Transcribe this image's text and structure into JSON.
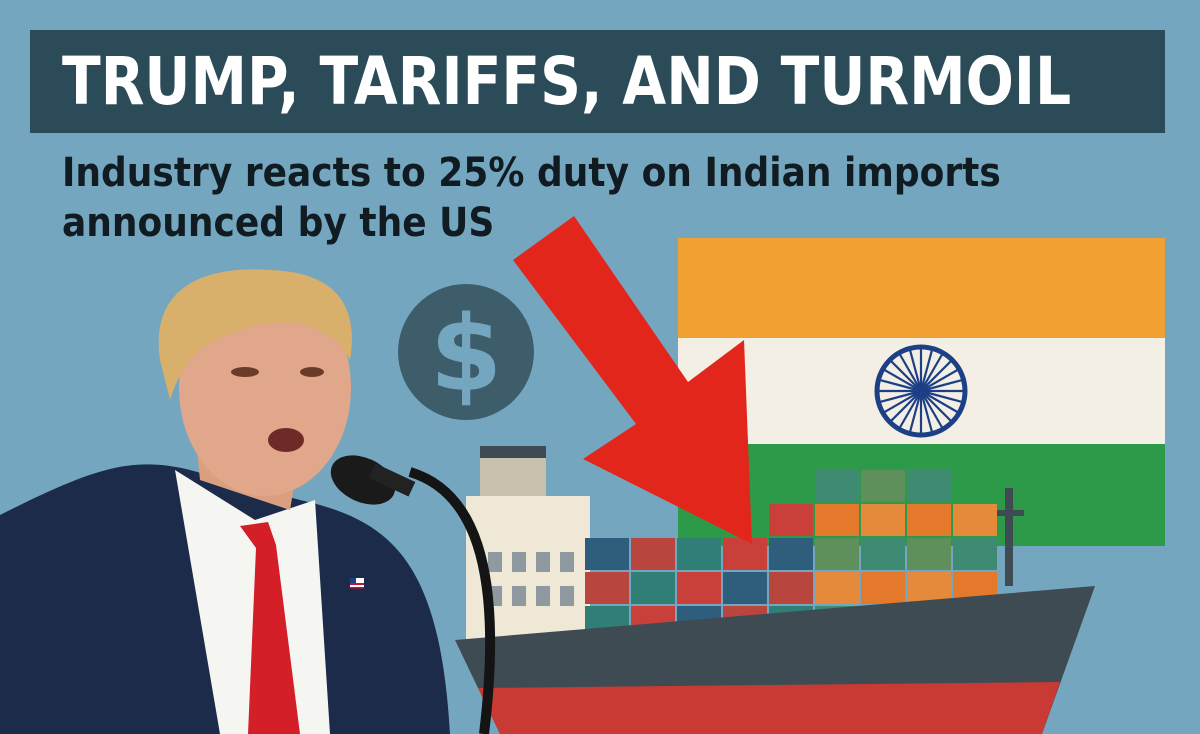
{
  "headline": {
    "title": "TRUMP, TARIFFS, AND TURMOIL",
    "subtitle_line_1": "Industry reacts to 25% duty on Indian imports",
    "subtitle_line_2": "announced by the US"
  },
  "dollar_coin": {
    "symbol": "$"
  },
  "icons": [
    "dollar-coin-icon",
    "down-arrow-icon",
    "india-flag-icon",
    "ashoka-chakra-icon",
    "cargo-ship-icon",
    "microphone-icon",
    "us-flag-pin-icon"
  ],
  "colors": {
    "background": "#74a7bf",
    "title_bar": "#2b4b59",
    "title_text": "#ffffff",
    "subtitle_text": "#111c22",
    "arrow": "#e3261b",
    "flag_saffron": "#f0a132",
    "flag_white": "#f3efe4",
    "flag_green": "#2c9a48",
    "chakra": "#1d3f86",
    "ship_hull_top": "#3f4b52",
    "ship_hull_bottom": "#c83a33",
    "tie": "#d41f28",
    "suit": "#1d2b4a"
  }
}
